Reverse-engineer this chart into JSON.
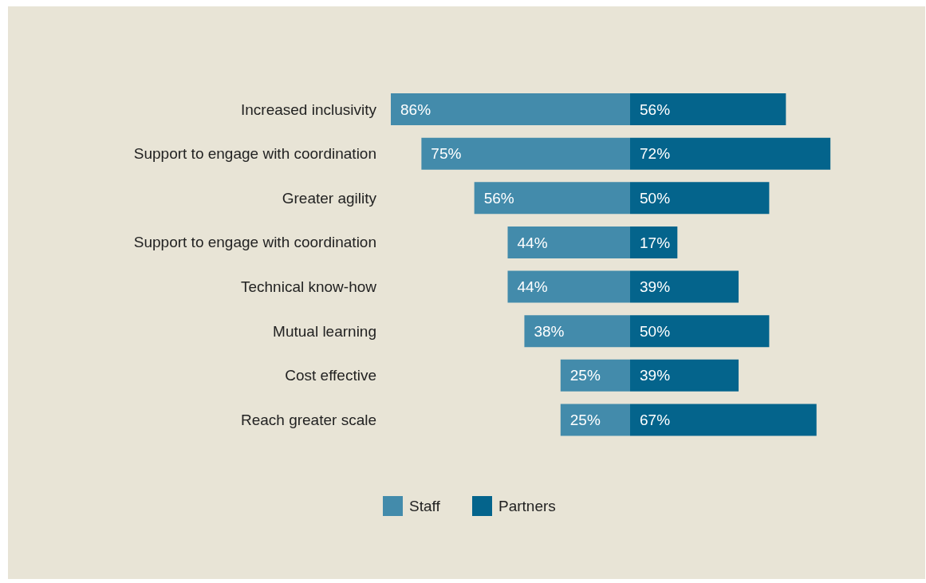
{
  "chart_data": [
    {
      "type": "bar",
      "orientation": "horizontal",
      "categories": [
        "Increased inclusivity",
        "Support to engage with coordination",
        "Greater agility",
        "Support to engage with coordination",
        "Technical know-how",
        "Mutual learning",
        "Cost effective",
        "Reach greater scale"
      ],
      "xlim": [
        86,
        0
      ],
      "tick_labels": "y",
      "series": [
        {
          "name": "Staff",
          "color": "#438bab",
          "values": [
            86,
            75,
            56,
            44,
            44,
            38,
            25,
            25
          ],
          "value_labels": [
            "86%",
            "75%",
            "56%",
            "44%",
            "44%",
            "38%",
            "25%",
            "25%"
          ]
        }
      ],
      "legend": "bottom"
    },
    {
      "type": "bar",
      "orientation": "horizontal",
      "categories": [
        null,
        null,
        null,
        null,
        null,
        null,
        null,
        null
      ],
      "tick_labels": false,
      "series": [
        {
          "name": "Partners",
          "color": "#04648c",
          "values": [
            56,
            72,
            50,
            17,
            39,
            50,
            39,
            67
          ],
          "value_labels": [
            "56%",
            "72%",
            "50%",
            "17%",
            "39%",
            "50%",
            "39%",
            "67%"
          ]
        }
      ],
      "legend": "bottom"
    }
  ]
}
